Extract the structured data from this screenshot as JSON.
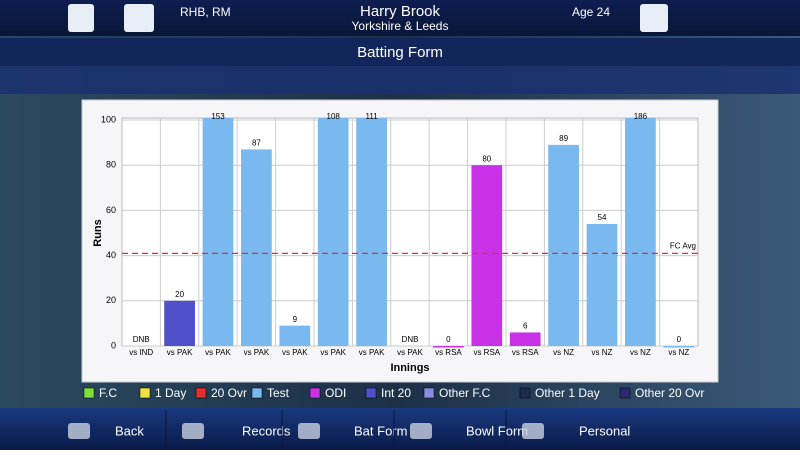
{
  "header": {
    "hand": "RHB, RM",
    "name": "Harry Brook",
    "team": "Yorkshire & Leeds",
    "age": "Age 24"
  },
  "chart_data": {
    "type": "bar",
    "title": "Batting Form",
    "x_label": "Innings",
    "y_label": "Runs",
    "categories": [
      "vs IND",
      "vs PAK",
      "vs PAK",
      "vs PAK",
      "vs PAK",
      "vs PAK",
      "vs PAK",
      "vs PAK",
      "vs RSA",
      "vs RSA",
      "vs RSA",
      "vs NZ",
      "vs NZ",
      "vs NZ",
      "vs NZ"
    ],
    "values": [
      null,
      20,
      153,
      87,
      9,
      108,
      111,
      null,
      0,
      80,
      6,
      89,
      54,
      186,
      0
    ],
    "value_labels": [
      "DNB",
      "20",
      "153",
      "87",
      "9",
      "108",
      "111",
      "DNB",
      "0",
      "80",
      "6",
      "89",
      "54",
      "186",
      "0"
    ],
    "colors": [
      "#7ab8f0",
      "#5050c8",
      "#7ab8f0",
      "#7ab8f0",
      "#7ab8f0",
      "#7ab8f0",
      "#7ab8f0",
      "#7ab8f0",
      "#c832e6",
      "#c832e6",
      "#c832e6",
      "#7ab8f0",
      "#7ab8f0",
      "#7ab8f0",
      "#7ab8f0"
    ],
    "ylim": [
      0,
      100
    ],
    "yticks": [
      0,
      20,
      40,
      60,
      80,
      100
    ],
    "grid": true,
    "reference_line": {
      "value": 41,
      "label": "FC Avg",
      "color": "#e03030"
    },
    "legend": [
      {
        "name": "F.C",
        "color": "#7ee03a"
      },
      {
        "name": "1 Day",
        "color": "#f0e040"
      },
      {
        "name": "20 Ovr",
        "color": "#e03030"
      },
      {
        "name": "Test",
        "color": "#7ab8f0"
      },
      {
        "name": "ODI",
        "color": "#c832e6"
      },
      {
        "name": "Int 20",
        "color": "#5050c8"
      },
      {
        "name": "Other F.C",
        "color": "#8a8ae0"
      },
      {
        "name": "Other 1 Day",
        "color": "#1a2a50"
      },
      {
        "name": "Other 20 Ovr",
        "color": "#2a2a70"
      }
    ]
  },
  "nav": [
    "Back",
    "Records",
    "Bat Form",
    "Bowl Form",
    "Personal"
  ]
}
